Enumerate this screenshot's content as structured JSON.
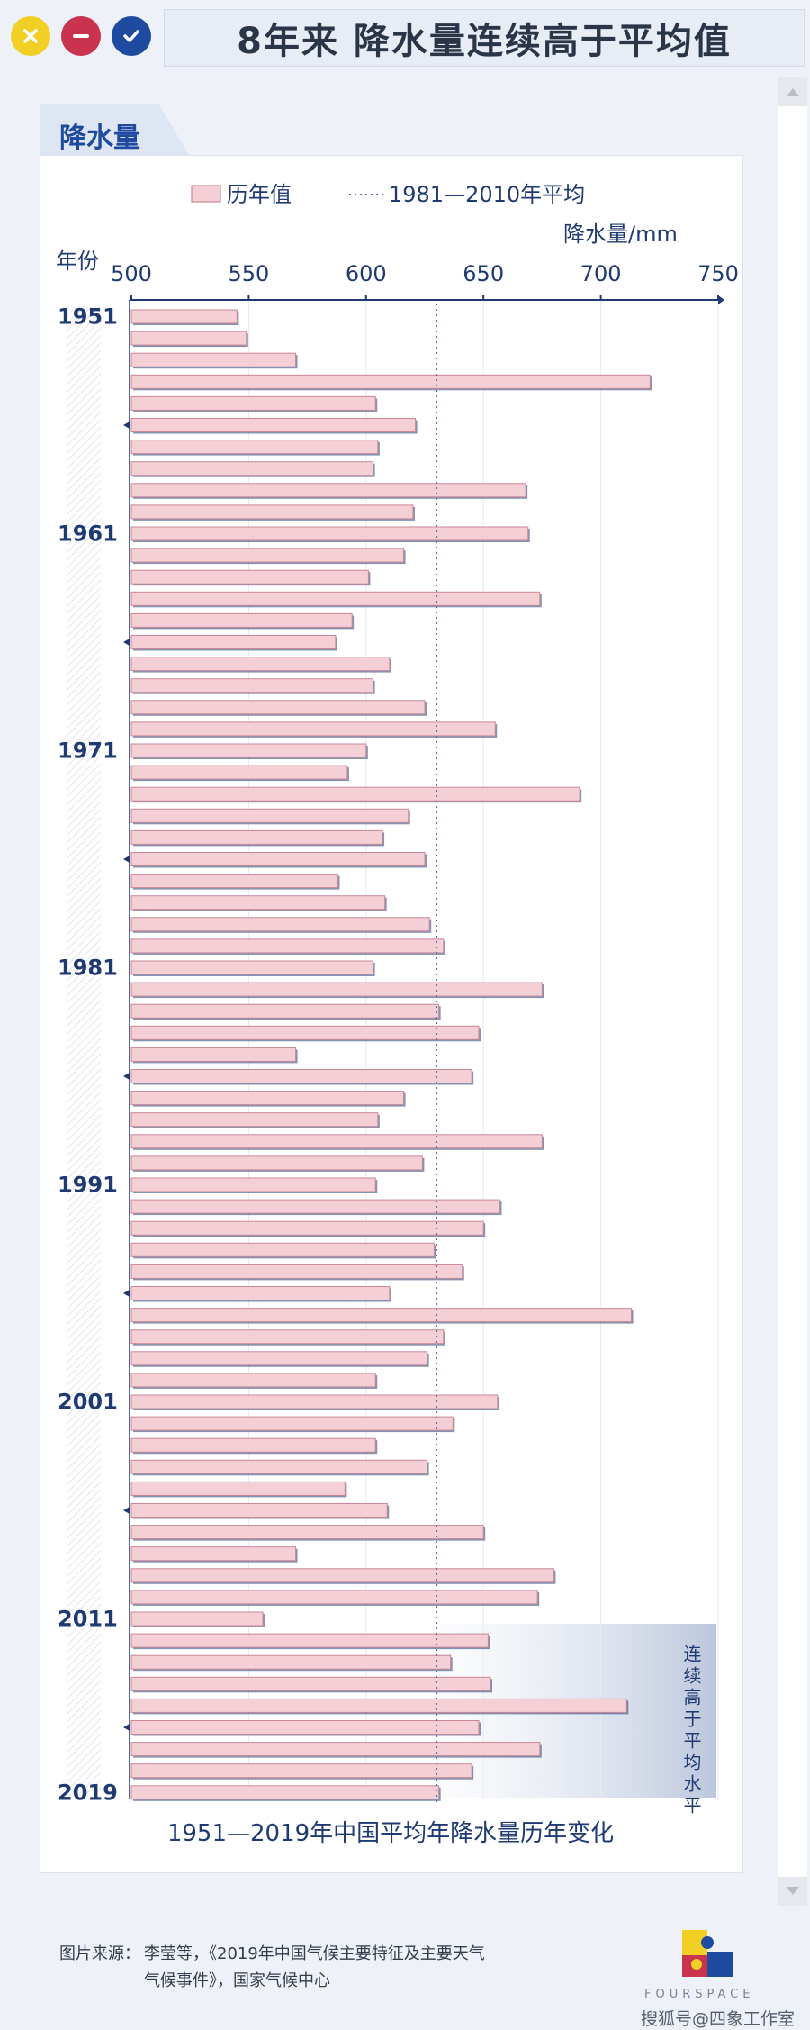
{
  "window": {
    "title": "8年来  降水量连续高于平均值",
    "tab_label": "降水量"
  },
  "chart_data": {
    "type": "bar",
    "orientation": "horizontal",
    "title": "1951—2019年中国平均年降水量历年变化",
    "xlabel": "降水量/mm",
    "ylabel": "年份",
    "xlim": [
      500,
      750
    ],
    "x_ticks": [
      "500",
      "550",
      "600",
      "650",
      "700",
      "750"
    ],
    "y_tick_labels": [
      "1951",
      "1961",
      "1971",
      "1981",
      "1991",
      "2001",
      "2011",
      "2019"
    ],
    "legend": {
      "bars": "历年值",
      "reference": "1981—2010年平均",
      "position": "top"
    },
    "reference_value": 630,
    "annotation": "连续高于平均水平",
    "categories": [
      1951,
      1952,
      1953,
      1954,
      1955,
      1956,
      1957,
      1958,
      1959,
      1960,
      1961,
      1962,
      1963,
      1964,
      1965,
      1966,
      1967,
      1968,
      1969,
      1970,
      1971,
      1972,
      1973,
      1974,
      1975,
      1976,
      1977,
      1978,
      1979,
      1980,
      1981,
      1982,
      1983,
      1984,
      1985,
      1986,
      1987,
      1988,
      1989,
      1990,
      1991,
      1992,
      1993,
      1994,
      1995,
      1996,
      1997,
      1998,
      1999,
      2000,
      2001,
      2002,
      2003,
      2004,
      2005,
      2006,
      2007,
      2008,
      2009,
      2010,
      2011,
      2012,
      2013,
      2014,
      2015,
      2016,
      2017,
      2018,
      2019
    ],
    "values": [
      545,
      549,
      570,
      721,
      604,
      621,
      605,
      603,
      668,
      620,
      669,
      616,
      601,
      674,
      594,
      587,
      610,
      603,
      625,
      655,
      600,
      592,
      691,
      618,
      607,
      625,
      588,
      608,
      627,
      633,
      603,
      675,
      631,
      648,
      570,
      645,
      616,
      605,
      675,
      624,
      604,
      657,
      650,
      629,
      641,
      610,
      713,
      633,
      626,
      604,
      656,
      637,
      604,
      626,
      591,
      609,
      650,
      570,
      680,
      673,
      556,
      652,
      636,
      653,
      711,
      648,
      674,
      645,
      631
    ]
  },
  "footer": {
    "source_label": "图片来源：",
    "source_line1": "李莹等，《2019年中国气候主要特征及主要天气",
    "source_line2": "气候事件》，国家气候中心",
    "brand": "FOURSPACE",
    "watermark": "搜狐号@四象工作室"
  },
  "colors": {
    "bar_fill": "#f5cfd6",
    "bar_stroke": "#c98796",
    "axis": "#1f3a73",
    "reference_line": "#5b6fb0",
    "title_text": "#2a3548"
  }
}
